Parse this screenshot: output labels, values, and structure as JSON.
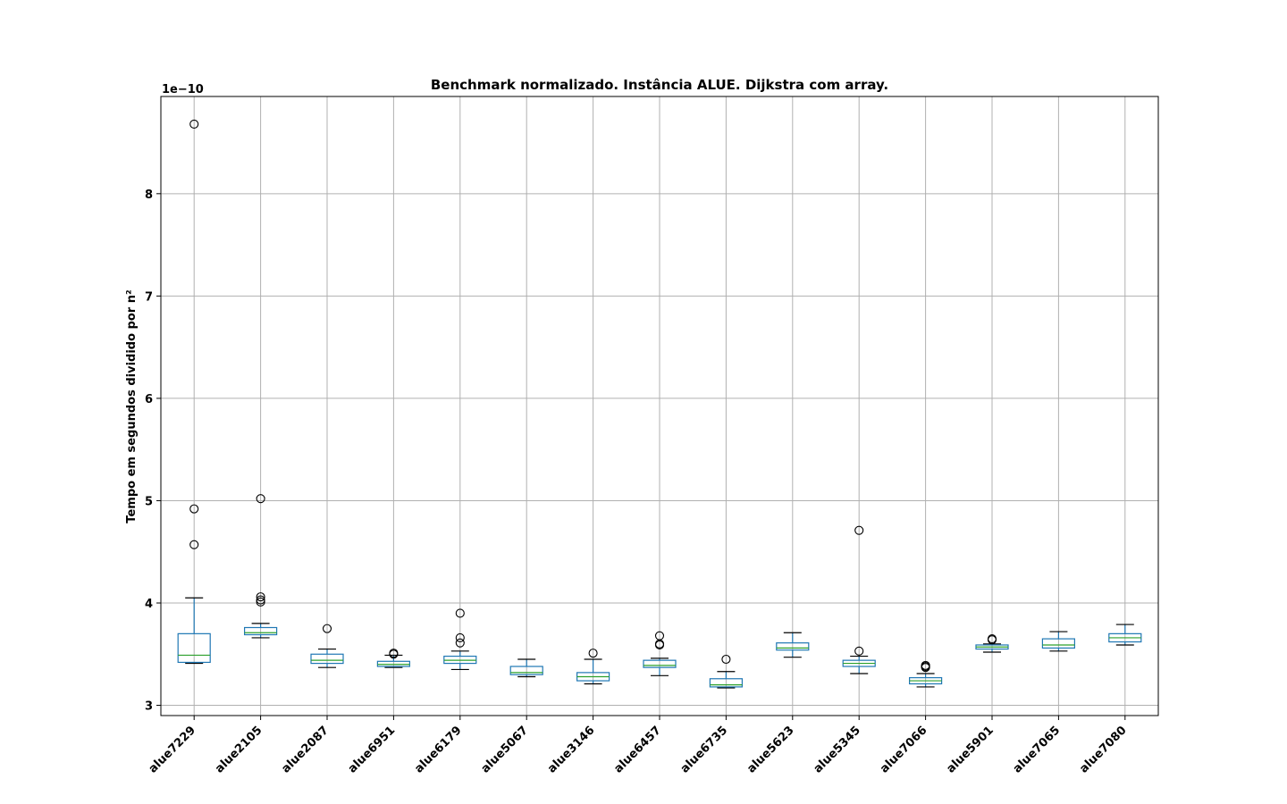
{
  "chart_data": {
    "type": "box",
    "title": "Benchmark normalizado. Instância ALUE. Dijkstra com array.",
    "ylabel": "Tempo em segundos dividido por n²",
    "xlabel": "",
    "y_scale_label": "1e−10",
    "y_multiplier": 1e-10,
    "ylim": [
      2.9,
      8.95
    ],
    "y_ticks": [
      3,
      4,
      5,
      6,
      7,
      8
    ],
    "grid": true,
    "categories": [
      "alue7229",
      "alue2105",
      "alue2087",
      "alue6951",
      "alue6179",
      "alue5067",
      "alue3146",
      "alue6457",
      "alue6735",
      "alue5623",
      "alue5345",
      "alue7066",
      "alue5901",
      "alue7065",
      "alue7080"
    ],
    "boxes": [
      {
        "whislo": 3.41,
        "q1": 3.42,
        "med": 3.49,
        "q3": 3.7,
        "whishi": 4.05,
        "fliers": [
          8.68,
          4.92,
          4.57
        ]
      },
      {
        "whislo": 3.66,
        "q1": 3.69,
        "med": 3.71,
        "q3": 3.76,
        "whishi": 3.8,
        "fliers": [
          5.02,
          4.06,
          4.03,
          4.01
        ]
      },
      {
        "whislo": 3.37,
        "q1": 3.41,
        "med": 3.44,
        "q3": 3.5,
        "whishi": 3.55,
        "fliers": [
          3.75
        ]
      },
      {
        "whislo": 3.37,
        "q1": 3.38,
        "med": 3.4,
        "q3": 3.43,
        "whishi": 3.49,
        "fliers": [
          3.51,
          3.5
        ]
      },
      {
        "whislo": 3.35,
        "q1": 3.41,
        "med": 3.44,
        "q3": 3.48,
        "whishi": 3.53,
        "fliers": [
          3.9,
          3.66,
          3.61
        ]
      },
      {
        "whislo": 3.28,
        "q1": 3.3,
        "med": 3.32,
        "q3": 3.38,
        "whishi": 3.45,
        "fliers": []
      },
      {
        "whislo": 3.21,
        "q1": 3.24,
        "med": 3.28,
        "q3": 3.32,
        "whishi": 3.45,
        "fliers": [
          3.51
        ]
      },
      {
        "whislo": 3.29,
        "q1": 3.37,
        "med": 3.39,
        "q3": 3.44,
        "whishi": 3.46,
        "fliers": [
          3.68,
          3.6,
          3.59
        ]
      },
      {
        "whislo": 3.17,
        "q1": 3.18,
        "med": 3.2,
        "q3": 3.26,
        "whishi": 3.33,
        "fliers": [
          3.45
        ]
      },
      {
        "whislo": 3.47,
        "q1": 3.54,
        "med": 3.56,
        "q3": 3.61,
        "whishi": 3.71,
        "fliers": []
      },
      {
        "whislo": 3.31,
        "q1": 3.38,
        "med": 3.41,
        "q3": 3.44,
        "whishi": 3.48,
        "fliers": [
          4.71,
          3.53
        ]
      },
      {
        "whislo": 3.18,
        "q1": 3.21,
        "med": 3.24,
        "q3": 3.27,
        "whishi": 3.31,
        "fliers": [
          3.39,
          3.38,
          3.37
        ]
      },
      {
        "whislo": 3.52,
        "q1": 3.55,
        "med": 3.57,
        "q3": 3.59,
        "whishi": 3.6,
        "fliers": [
          3.65,
          3.64
        ]
      },
      {
        "whislo": 3.53,
        "q1": 3.56,
        "med": 3.59,
        "q3": 3.65,
        "whishi": 3.72,
        "fliers": []
      },
      {
        "whislo": 3.59,
        "q1": 3.62,
        "med": 3.66,
        "q3": 3.7,
        "whishi": 3.79,
        "fliers": []
      }
    ],
    "colors": {
      "box": "#1f77b4",
      "median": "#2ca02c",
      "cap": "#000000",
      "flier": "#000000",
      "grid": "#b0b0b0"
    }
  }
}
